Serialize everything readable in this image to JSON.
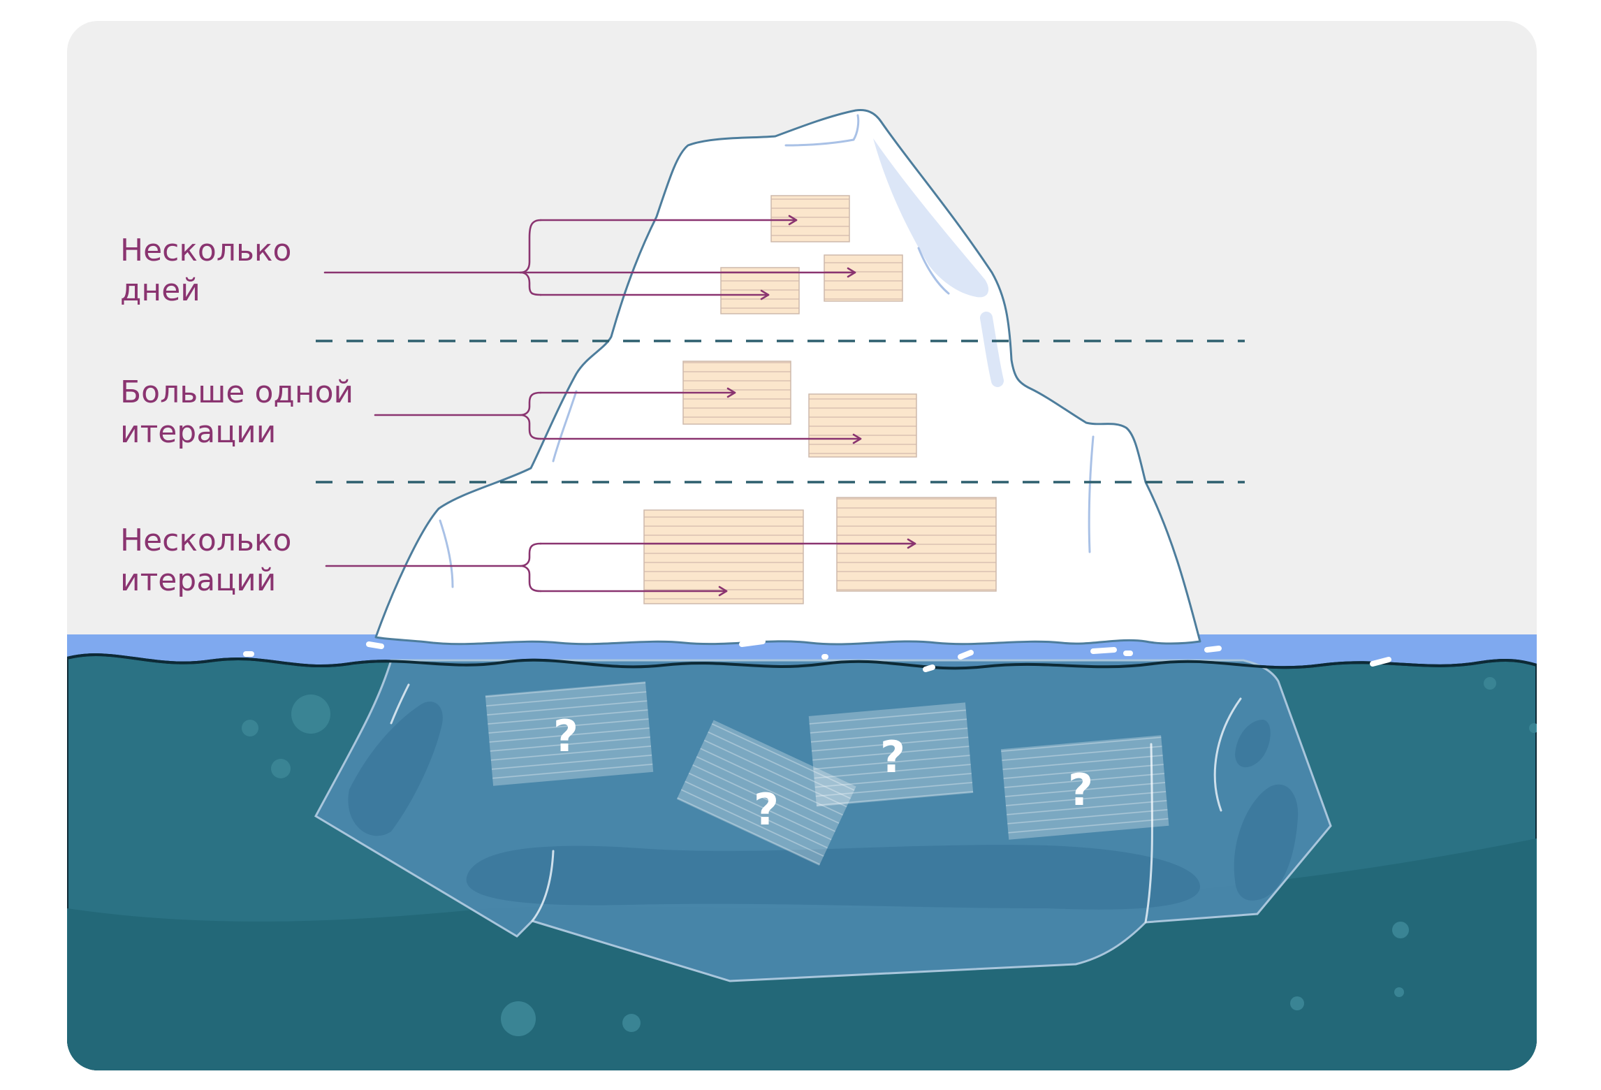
{
  "colors": {
    "sky": "#efefef",
    "water_deep": "#246a79",
    "water_surface": "#7fa9ef",
    "ice": "#ffffff",
    "ice_outline": "#4d7d9c",
    "underwater_ice": "#4b88ac",
    "card_fill": "#fbe6cc",
    "card_lines": "#d8c0b0",
    "label_color": "#8a3470",
    "arrow_color": "#8a3470",
    "divider": "#2d5f6e"
  },
  "labels": {
    "tier1": "Несколько\nдней",
    "tier2": "Больше одной\nитерации",
    "tier3": "Несколько\nитераций"
  },
  "unknown_mark": "?"
}
